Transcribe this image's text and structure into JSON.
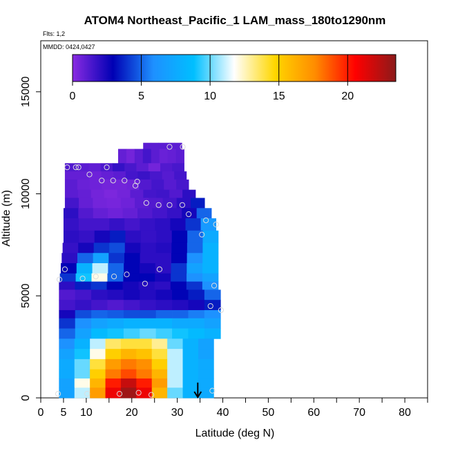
{
  "chart_data": {
    "type": "heatmap",
    "title": "ATOM4 Northeast_Pacific_1 LAM_mass_180to1290nm",
    "flights_label": "Flts: 1,2",
    "dates_label": "MMDD: 0424,0427",
    "xlabel": "Latitude (deg N)",
    "ylabel": "Altitude (m)",
    "xlim": [
      0,
      85
    ],
    "ylim": [
      0,
      17500
    ],
    "x_ticks": [
      0,
      5,
      10,
      20,
      30,
      40,
      50,
      60,
      70,
      80
    ],
    "x_minor_ticks": [
      15,
      25,
      35,
      45,
      55,
      65,
      75,
      85
    ],
    "y_ticks": [
      0,
      5000,
      10000,
      15000
    ],
    "colorbar": {
      "range": [
        0,
        23.5
      ],
      "ticks": [
        0,
        5,
        10,
        15,
        20
      ],
      "colors": [
        "#8a2be2",
        "#0000b4",
        "#1e90ff",
        "#00bfff",
        "#ffffff",
        "#ffd700",
        "#ff8c00",
        "#ff0000",
        "#8b1a1a"
      ]
    },
    "profile_rows": [
      {
        "alt": [
          12200,
          12500
        ],
        "x": [
          22.5,
          31
        ],
        "v": [
          1,
          1,
          1,
          1,
          1
        ]
      },
      {
        "alt": [
          11500,
          12200
        ],
        "x": [
          17,
          31.5
        ],
        "v": [
          0.8,
          0.5,
          1,
          1.5,
          1,
          0.7,
          0.8,
          1
        ]
      },
      {
        "alt": [
          11100,
          11500
        ],
        "x": [
          5.3,
          31.5
        ],
        "v": [
          1.2,
          1,
          0.9,
          1.3,
          1.8,
          1.4,
          1,
          0.5,
          1.2,
          1.4
        ]
      },
      {
        "alt": [
          10700,
          11100
        ],
        "x": [
          5.3,
          32
        ],
        "v": [
          0.8,
          0.8,
          0.6,
          0.8,
          1,
          1.5,
          1.7,
          1.4,
          1.1,
          1.5
        ]
      },
      {
        "alt": [
          10200,
          10700
        ],
        "x": [
          5.3,
          32.5
        ],
        "v": [
          1,
          0.7,
          0.6,
          0.5,
          0.5,
          0.6,
          1.2,
          1.5,
          1.1,
          1.4
        ]
      },
      {
        "alt": [
          9800,
          10200
        ],
        "x": [
          5.3,
          34
        ],
        "v": [
          1,
          0.8,
          0.5,
          0.3,
          0.5,
          1,
          1.5,
          1.6,
          1.2,
          2
        ]
      },
      {
        "alt": [
          9300,
          9800
        ],
        "x": [
          5.3,
          36
        ],
        "v": [
          1.5,
          0.8,
          0.5,
          0.4,
          0.6,
          1,
          1.2,
          1.5,
          2,
          3.5
        ]
      },
      {
        "alt": [
          8800,
          9300
        ],
        "x": [
          5,
          37.5
        ],
        "v": [
          2,
          1.2,
          0.8,
          0.6,
          0.8,
          1.2,
          1.5,
          1.8,
          2.5,
          5
        ]
      },
      {
        "alt": [
          8200,
          8800
        ],
        "x": [
          5,
          38.5
        ],
        "v": [
          1.8,
          1.5,
          1.5,
          1.8,
          1.5,
          1.8,
          2,
          2.5,
          4,
          6.5
        ]
      },
      {
        "alt": [
          7600,
          8200
        ],
        "x": [
          5,
          39
        ],
        "v": [
          2,
          1.8,
          2.5,
          3.5,
          2,
          1.8,
          2,
          3,
          5,
          7.5
        ]
      },
      {
        "alt": [
          7100,
          7600
        ],
        "x": [
          4.8,
          39
        ],
        "v": [
          1.8,
          2.5,
          4,
          4.5,
          2.5,
          2,
          2.2,
          3,
          5,
          8
        ]
      },
      {
        "alt": [
          6600,
          7100
        ],
        "x": [
          4.6,
          39
        ],
        "v": [
          2,
          5,
          7,
          4,
          3,
          2,
          2,
          3,
          6,
          8
        ]
      },
      {
        "alt": [
          6100,
          6600
        ],
        "x": [
          4.4,
          39
        ],
        "v": [
          3,
          8,
          11,
          5,
          3,
          2.5,
          2,
          4,
          7,
          8
        ]
      },
      {
        "alt": [
          5700,
          6100
        ],
        "x": [
          4.2,
          39
        ],
        "v": [
          4,
          9,
          12,
          5,
          3,
          3,
          2.5,
          4,
          6,
          7
        ]
      },
      {
        "alt": [
          5300,
          5700
        ],
        "x": [
          4,
          39
        ],
        "v": [
          2,
          3.5,
          4,
          3,
          2.5,
          2.2,
          2,
          3,
          4,
          6
        ]
      },
      {
        "alt": [
          4800,
          5300
        ],
        "x": [
          4,
          39.5
        ],
        "v": [
          1.2,
          1.5,
          2,
          2.2,
          2.5,
          2.2,
          2.5,
          3,
          3.5,
          5
        ]
      },
      {
        "alt": [
          4300,
          4800
        ],
        "x": [
          4,
          39.5
        ],
        "v": [
          1.5,
          1.8,
          1.5,
          1.2,
          1.5,
          1.8,
          2,
          2.2,
          2.5,
          3.5
        ]
      },
      {
        "alt": [
          3900,
          4300
        ],
        "x": [
          4,
          39.5
        ],
        "v": [
          2.5,
          4.5,
          5,
          4.8,
          4.5,
          4.5,
          5,
          5,
          5.5,
          6
        ]
      },
      {
        "alt": [
          3400,
          3900
        ],
        "x": [
          4,
          39.5
        ],
        "v": [
          4,
          6,
          7,
          7.5,
          8,
          8,
          8,
          7.5,
          7.5,
          7
        ]
      },
      {
        "alt": [
          2900,
          3400
        ],
        "x": [
          4,
          39.5
        ],
        "v": [
          5,
          7,
          8.5,
          9,
          9.5,
          10,
          9.5,
          9,
          8.5,
          8
        ]
      },
      {
        "alt": [
          2400,
          2900
        ],
        "x": [
          4,
          38
        ],
        "v": [
          6,
          8,
          11,
          13.5,
          14,
          14,
          13,
          10,
          8,
          7
        ]
      },
      {
        "alt": [
          1900,
          2400
        ],
        "x": [
          4,
          38
        ],
        "v": [
          7,
          9,
          12,
          15,
          16,
          15.5,
          14,
          11,
          8,
          7
        ]
      },
      {
        "alt": [
          1400,
          1900
        ],
        "x": [
          4,
          38
        ],
        "v": [
          7.5,
          10,
          14,
          17,
          18,
          17.5,
          15,
          11,
          8,
          7.5
        ]
      },
      {
        "alt": [
          950,
          1400
        ],
        "x": [
          4,
          38
        ],
        "v": [
          7.5,
          10,
          15,
          18,
          19,
          18,
          16,
          11,
          8,
          7.5
        ]
      },
      {
        "alt": [
          500,
          950
        ],
        "x": [
          4,
          38
        ],
        "v": [
          7,
          12,
          16,
          20,
          22,
          20,
          17,
          11,
          8,
          7.5
        ]
      },
      {
        "alt": [
          0,
          500
        ],
        "x": [
          4,
          38
        ],
        "v": [
          7,
          11,
          17,
          21,
          23,
          21,
          16,
          10,
          8,
          7.5
        ]
      }
    ],
    "sample_points": [
      [
        31.2,
        12300
      ],
      [
        28.3,
        12300
      ],
      [
        5.8,
        11300
      ],
      [
        7.7,
        11300
      ],
      [
        8.3,
        11300
      ],
      [
        14.5,
        11300
      ],
      [
        10.7,
        10950
      ],
      [
        13.4,
        10650
      ],
      [
        15.9,
        10650
      ],
      [
        18.4,
        10650
      ],
      [
        20.8,
        10400
      ],
      [
        21.2,
        10600
      ],
      [
        23.2,
        9550
      ],
      [
        25.9,
        9450
      ],
      [
        28.3,
        9450
      ],
      [
        31.1,
        9450
      ],
      [
        32.5,
        9000
      ],
      [
        36.3,
        8700
      ],
      [
        38.5,
        8500
      ],
      [
        35.4,
        8000
      ],
      [
        26.1,
        6300
      ],
      [
        5.3,
        6300
      ],
      [
        4.1,
        5800
      ],
      [
        9.2,
        5850
      ],
      [
        12.1,
        5950
      ],
      [
        16.1,
        5950
      ],
      [
        18.9,
        6050
      ],
      [
        22.9,
        5600
      ],
      [
        38.1,
        5500
      ],
      [
        37.3,
        4500
      ],
      [
        39.6,
        4300
      ],
      [
        3.8,
        200
      ],
      [
        10.2,
        200
      ],
      [
        17.3,
        200
      ],
      [
        21.5,
        250
      ],
      [
        24.3,
        150
      ],
      [
        37.7,
        350
      ]
    ],
    "arrow_marker": {
      "x": 34.5,
      "y_from": 750,
      "y_to": 0
    }
  }
}
